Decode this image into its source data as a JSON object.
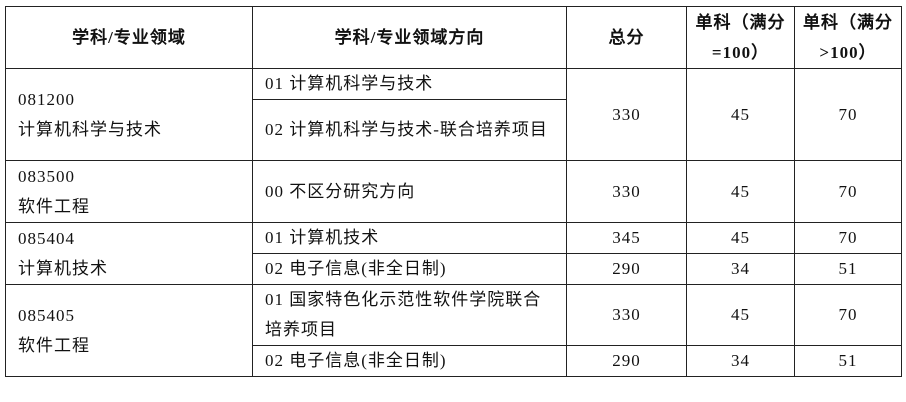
{
  "headers": [
    "学科/专业领域",
    "学科/专业领域方向",
    "总分",
    "单科（满分=100）",
    "单科（满分>100）"
  ],
  "groups": [
    {
      "code": "081200",
      "name": "计算机科学与技术",
      "total": "330",
      "s100": "45",
      "s100plus": "70",
      "directions": [
        "01 计算机科学与技术",
        "02 计算机科学与技术-联合培养项目"
      ]
    },
    {
      "code": "083500",
      "name": "软件工程",
      "directions": [
        {
          "label": "00 不区分研究方向",
          "total": "330",
          "s100": "45",
          "s100plus": "70"
        }
      ]
    },
    {
      "code": "085404",
      "name": "计算机技术",
      "directions": [
        {
          "label": "01 计算机技术",
          "total": "345",
          "s100": "45",
          "s100plus": "70"
        },
        {
          "label": "02 电子信息(非全日制)",
          "total": "290",
          "s100": "34",
          "s100plus": "51"
        }
      ]
    },
    {
      "code": "085405",
      "name": "软件工程",
      "directions": [
        {
          "label": "01 国家特色化示范性软件学院联合培养项目",
          "total": "330",
          "s100": "45",
          "s100plus": "70"
        },
        {
          "label": "02 电子信息(非全日制)",
          "total": "290",
          "s100": "34",
          "s100plus": "51"
        }
      ]
    }
  ]
}
